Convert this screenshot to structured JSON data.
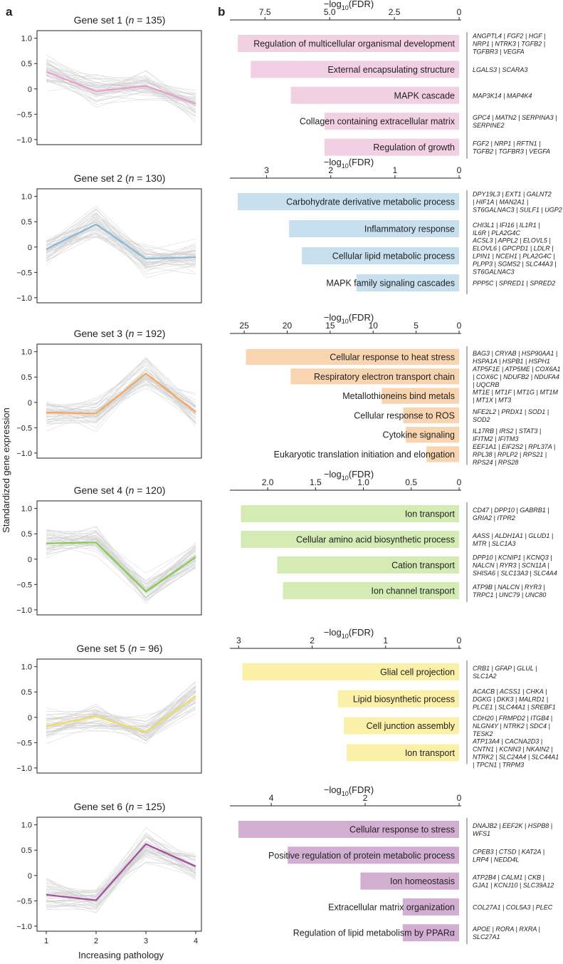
{
  "panel_labels": {
    "a": "a",
    "b": "b"
  },
  "left_common": {
    "ylabel": "Standardized gene expression",
    "xlabel": "Increasing pathology",
    "x_ticks": [
      "1",
      "2",
      "3",
      "4"
    ],
    "y_ticks": [
      "1.0",
      "0.5",
      "0",
      "−0.5",
      "−1.0"
    ],
    "background_color": "#c9c9c9"
  },
  "right_common": {
    "axis_label_prefix": "−log",
    "axis_label_sub": "10",
    "axis_label_suffix": "(FDR)"
  },
  "chart_data": [
    {
      "type": "line",
      "panel": "a",
      "title_prefix": "Gene set 1 (",
      "title_n_label": "n",
      "title_suffix": " = 135)",
      "x": [
        1,
        2,
        3,
        4
      ],
      "mean": [
        0.34,
        -0.05,
        0.06,
        -0.29
      ],
      "color": "#e8a0c8",
      "ylim": [
        -1.1,
        1.15
      ]
    },
    {
      "type": "bar",
      "panel": "b",
      "orientation": "horizontal",
      "xlim": [
        0,
        8.8
      ],
      "ticks": [
        7.5,
        5.0,
        2.5,
        0
      ],
      "tick_labels": [
        "7.5",
        "5.0",
        "2.5",
        "0"
      ],
      "color": "#f2d0e3",
      "terms": [
        {
          "label": "Regulation of multicellular organismal development",
          "value": 8.55,
          "genes": [
            "ANGPTL4 | FGF2 | HGF |",
            "NRP1 | NTRK3 | TGFB2 |",
            "TGFBR3 | VEGFA"
          ]
        },
        {
          "label": "External encapsulating structure",
          "value": 8.05,
          "genes": [
            "LGALS3 | SCARA3"
          ]
        },
        {
          "label": "MAPK cascade",
          "value": 6.5,
          "genes": [
            "MAP3K14 | MAP4K4"
          ]
        },
        {
          "label": "Collagen containing extracellular matrix",
          "value": 5.2,
          "genes": [
            "GPC4 | MATN2 | SERPINA3 |",
            "SERPINE2"
          ]
        },
        {
          "label": "Regulation of growth",
          "value": 5.2,
          "genes": [
            "FGF2 | NRP1 | RFTN1 |",
            "TGFB2 | TGFBR3 | VEGFA"
          ]
        }
      ]
    },
    {
      "type": "line",
      "panel": "a",
      "title_prefix": "Gene set 2 (",
      "title_n_label": "n",
      "title_suffix": " = 130)",
      "x": [
        1,
        2,
        3,
        4
      ],
      "mean": [
        -0.04,
        0.45,
        -0.23,
        -0.2
      ],
      "color": "#8ab8d8",
      "ylim": [
        -1.1,
        1.15
      ]
    },
    {
      "type": "bar",
      "panel": "b",
      "orientation": "horizontal",
      "xlim": [
        0,
        3.55
      ],
      "ticks": [
        3,
        2,
        1,
        0
      ],
      "tick_labels": [
        "3",
        "2",
        "1",
        "0"
      ],
      "color": "#c8e0ee",
      "terms": [
        {
          "label": "Carbohydrate derivative metabolic process",
          "value": 3.45,
          "genes": [
            "DPY19L3 | EXT1 | GALNT2",
            "| HIF1A | MAN2A1 |",
            "ST6GALNAC3 | SULF1 | UGP2"
          ]
        },
        {
          "label": "Inflammatory response",
          "value": 2.65,
          "genes": [
            "CHI3L1 | IFI16 | IL1R1 |",
            "IL6R | PLA2G4C"
          ]
        },
        {
          "label": "Cellular lipid metabolic process",
          "value": 2.45,
          "genes": [
            "ACSL3 | APPL2 | ELOVL5 |",
            "ELOVL6 | GPCPD1 | LDLR |",
            "LPIN1 | NCEH1 | PLA2G4C |",
            "PLPP3 | SGMS2 | SLC44A3 |",
            "ST6GALNAC3"
          ]
        },
        {
          "label": "MAPK family signaling cascades",
          "value": 1.6,
          "genes": [
            "PPP5C | SPRED1 | SPRED2"
          ]
        }
      ]
    },
    {
      "type": "line",
      "panel": "a",
      "title_prefix": "Gene set 3 (",
      "title_n_label": "n",
      "title_suffix": " = 192)",
      "x": [
        1,
        2,
        3,
        4
      ],
      "mean": [
        -0.2,
        -0.22,
        0.57,
        -0.19
      ],
      "color": "#f2a861",
      "ylim": [
        -1.1,
        1.15
      ]
    },
    {
      "type": "bar",
      "panel": "b",
      "orientation": "horizontal",
      "xlim": [
        0,
        26.5
      ],
      "ticks": [
        25,
        20,
        15,
        10,
        5,
        0
      ],
      "tick_labels": [
        "25",
        "20",
        "15",
        "10",
        "5",
        "0"
      ],
      "color": "#f8d5b0",
      "terms": [
        {
          "label": "Cellular response to heat stress",
          "value": 24.8,
          "genes": [
            "BAG3 | CRYAB | HSP90AA1 |",
            "HSPA1A | HSPB1 | HSPH1"
          ]
        },
        {
          "label": "Respiratory electron transport chain",
          "value": 19.6,
          "genes": [
            "ATP5F1E | ATP5ME | COX6A1",
            "| COX6C | NDUFB2 | NDUFA4",
            "| UQCRB"
          ]
        },
        {
          "label": "Metallothioneins bind metals",
          "value": 9.0,
          "genes": [
            "MT1E | MT1F | MT1G | MT1M",
            "| MT1X | MT3"
          ]
        },
        {
          "label": "Cellular response to ROS",
          "value": 6.5,
          "genes": [
            "NFE2L2 | PRDX1 | SOD1 |",
            "SOD2"
          ]
        },
        {
          "label": "Cytokine signaling",
          "value": 6.2,
          "genes": [
            "IL17RB | IRS2 | STAT3 |",
            "IFITM2 | IFITM3"
          ]
        },
        {
          "label": "Eukaryotic translation initiation and elongation",
          "value": 3.8,
          "genes": [
            "EEF1A1 | EIF2S2 | RPL37A |",
            "RPL38 | RPLP2 | RPS21 |",
            "RPS24 | RPS28"
          ]
        }
      ]
    },
    {
      "type": "line",
      "panel": "a",
      "title_prefix": "Gene set 4 (",
      "title_n_label": "n",
      "title_suffix": " = 120)",
      "x": [
        1,
        2,
        3,
        4
      ],
      "mean": [
        0.31,
        0.33,
        -0.64,
        0.04
      ],
      "color": "#82cc4a",
      "ylim": [
        -1.1,
        1.15
      ]
    },
    {
      "type": "bar",
      "panel": "b",
      "orientation": "horizontal",
      "xlim": [
        0,
        2.38
      ],
      "ticks": [
        2.0,
        1.5,
        1.0,
        0.5,
        0
      ],
      "tick_labels": [
        "2.0",
        "1.5",
        "1.0",
        "0.5",
        "0"
      ],
      "color": "#d4ebb4",
      "terms": [
        {
          "label": "Ion transport",
          "value": 2.28,
          "genes": [
            "CD47 | DPP10 | GABRB1 |",
            "GRIA2 | ITPR2"
          ]
        },
        {
          "label": "Cellular amino acid biosynthetic process",
          "value": 2.28,
          "genes": [
            "AASS | ALDH1A1 | GLUD1 |",
            "MTR | SLC1A3"
          ]
        },
        {
          "label": "Cation transport",
          "value": 1.9,
          "genes": [
            "DPP10 | KCNIP1 | KCNQ3 |",
            "NALCN | RYR3 | SCN11A |",
            "SHISA6 | SLC13A3 | SLC4A4"
          ]
        },
        {
          "label": "Ion channel transport",
          "value": 1.84,
          "genes": [
            "ATP9B | NALCN | RYR3 |",
            "TRPC1 | UNC79 | UNC80"
          ]
        }
      ]
    },
    {
      "type": "line",
      "panel": "a",
      "title_prefix": "Gene set 5 (",
      "title_n_label": "n",
      "title_suffix": " = 96)",
      "x": [
        1,
        2,
        3,
        4
      ],
      "mean": [
        -0.18,
        0.02,
        -0.29,
        0.42
      ],
      "color": "#f2dc5a",
      "ylim": [
        -1.1,
        1.15
      ]
    },
    {
      "type": "bar",
      "panel": "b",
      "orientation": "horizontal",
      "xlim": [
        0,
        3.1
      ],
      "ticks": [
        3,
        2,
        1,
        0
      ],
      "tick_labels": [
        "3",
        "2",
        "1",
        "0"
      ],
      "color": "#fbf0a8",
      "terms": [
        {
          "label": "Glial cell projection",
          "value": 2.95,
          "genes": [
            "CRB1 | GFAP | GLUL |",
            "SLC1A2"
          ]
        },
        {
          "label": "Lipid biosynthetic process",
          "value": 1.65,
          "genes": [
            "ACACB | ACSS1 | CHKA |",
            "DGKG | DKK3 | MALRD1 |",
            "PLCE1 | SLC44A1 | SREBF1"
          ]
        },
        {
          "label": "Cell junction assembly",
          "value": 1.57,
          "genes": [
            "CDH20 | FRMPD2 | ITGB4 |",
            "NLGN4Y | NTRK2 | SDC4 |",
            "TESK2"
          ]
        },
        {
          "label": "Ion transport",
          "value": 1.53,
          "genes": [
            "ATP13A4 | CACNA2D3 |",
            "CNTN1 | KCNN3 | NKAIN2 |",
            "NTRK2 | SLC24A4 | SLC44A1",
            "| TPCN1 | TRPM3"
          ]
        }
      ]
    },
    {
      "type": "line",
      "panel": "a",
      "title_prefix": "Gene set 6 (",
      "title_n_label": "n",
      "title_suffix": " = 125)",
      "x": [
        1,
        2,
        3,
        4
      ],
      "mean": [
        -0.38,
        -0.49,
        0.62,
        0.18
      ],
      "color": "#a44aa0",
      "ylim": [
        -1.1,
        1.15
      ]
    },
    {
      "type": "bar",
      "panel": "b",
      "orientation": "horizontal",
      "xlim": [
        0,
        4.85
      ],
      "ticks": [
        4,
        2,
        0
      ],
      "tick_labels": [
        "4",
        "2",
        "0"
      ],
      "color": "#d3aed3",
      "terms": [
        {
          "label": "Cellular response to stress",
          "value": 4.7,
          "genes": [
            "DNAJB2 | EEF2K | HSPB8 |",
            "WFS1"
          ]
        },
        {
          "label": "Positive regulation of protein metabolic process",
          "value": 3.65,
          "genes": [
            "CPEB3 | CTSD | KAT2A |",
            "LRP4 | NEDD4L"
          ]
        },
        {
          "label": "Ion homeostasis",
          "value": 2.1,
          "genes": [
            "ATP2B4 | CALM1 | CKB |",
            "GJA1 | KCNJ10 | SLC39A12"
          ]
        },
        {
          "label": "Extracellular matrix organization",
          "value": 1.2,
          "genes": [
            "COL27A1 | COL5A3 | PLEC"
          ]
        },
        {
          "label": "Regulation of lipid metabolism by PPARα",
          "value": 1.2,
          "genes": [
            "APOE | RORA | RXRA |",
            "SLC27A1"
          ]
        }
      ]
    }
  ]
}
